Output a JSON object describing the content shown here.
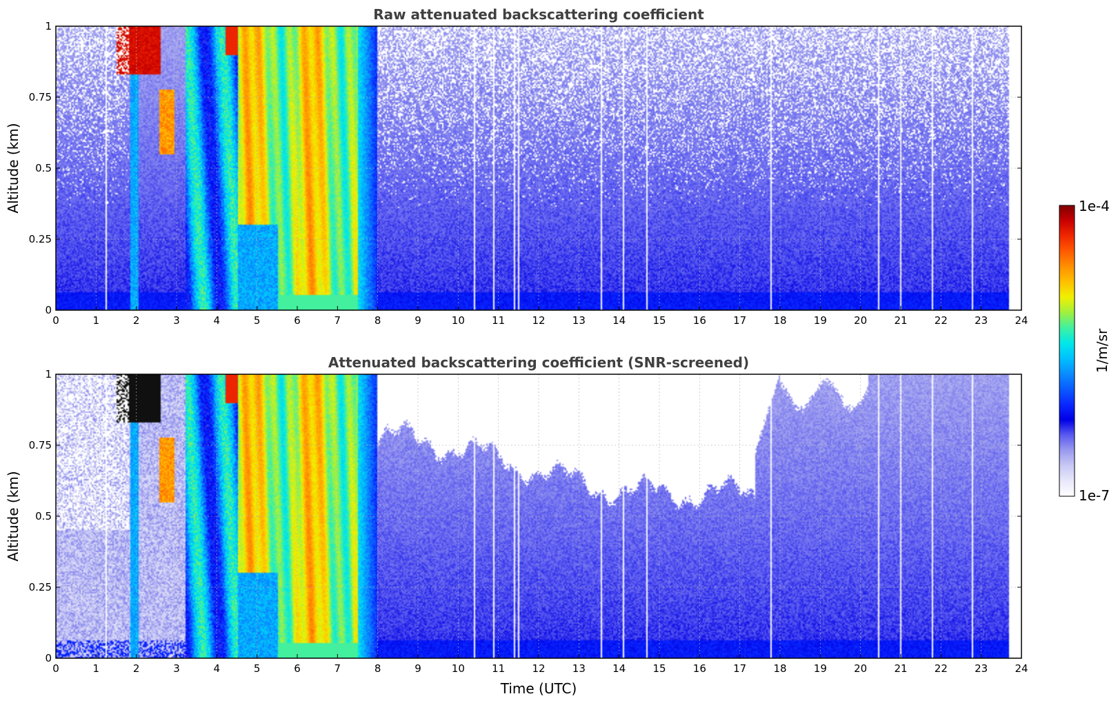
{
  "colors": {
    "colormap": [
      "#ffffff",
      "#e8e8fb",
      "#c8c8f5",
      "#9a9aef",
      "#5a5af0",
      "#0000e6",
      "#0a28ff",
      "#0a5aff",
      "#0a8cff",
      "#00c0ff",
      "#00e8e8",
      "#40f0a0",
      "#a0f040",
      "#f0f000",
      "#ffc000",
      "#ff9000",
      "#ff5a00",
      "#f02800",
      "#c80000",
      "#800000"
    ],
    "screened_saturated": "#101010"
  },
  "colorbar": {
    "label": "1/m/sr",
    "max_label": "1e-4",
    "min_label": "1e-7",
    "scale": "log",
    "range": [
      1e-07,
      0.0001
    ]
  },
  "chart_data": [
    {
      "type": "heatmap",
      "title": "Raw attenuated backscattering coefficient",
      "xlabel": "",
      "ylabel": "Altitude (km)",
      "xlim": [
        0,
        24
      ],
      "ylim": [
        0,
        1
      ],
      "x_ticks": [
        "0",
        "1",
        "2",
        "3",
        "4",
        "5",
        "6",
        "7",
        "8",
        "9",
        "10",
        "11",
        "12",
        "13",
        "14",
        "15",
        "16",
        "17",
        "18",
        "19",
        "20",
        "21",
        "22",
        "23",
        "24"
      ],
      "y_ticks": [
        "0",
        "0.25",
        "0.5",
        "0.75",
        "1"
      ],
      "grid": true,
      "screened": false
    },
    {
      "type": "heatmap",
      "title": "Attenuated backscattering coefficient (SNR-screened)",
      "xlabel": "Time (UTC)",
      "ylabel": "Altitude (km)",
      "xlim": [
        0,
        24
      ],
      "ylim": [
        0,
        1
      ],
      "x_ticks": [
        "0",
        "1",
        "2",
        "3",
        "4",
        "5",
        "6",
        "7",
        "8",
        "9",
        "10",
        "11",
        "12",
        "13",
        "14",
        "15",
        "16",
        "17",
        "18",
        "19",
        "20",
        "21",
        "22",
        "23",
        "24"
      ],
      "y_ticks": [
        "0",
        "0.25",
        "0.5",
        "0.75",
        "1"
      ],
      "grid": true,
      "screened": true
    }
  ]
}
